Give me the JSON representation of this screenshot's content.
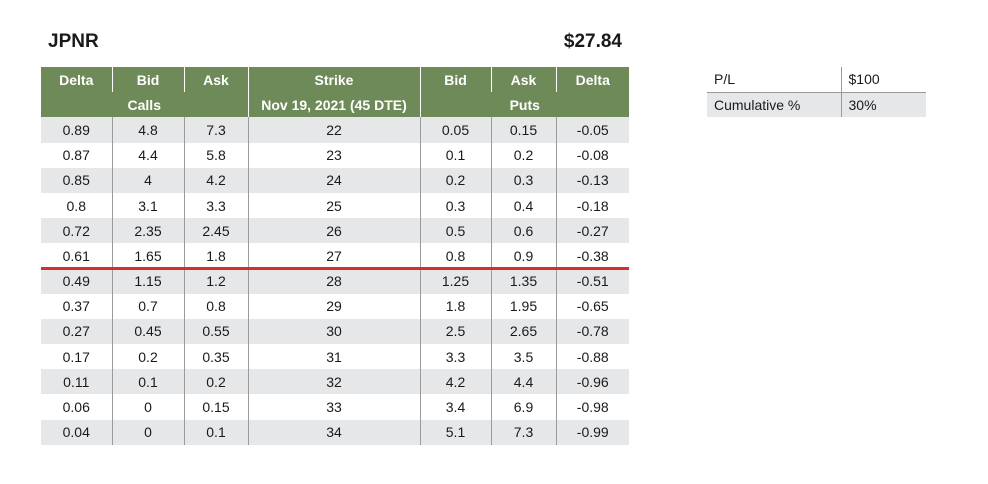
{
  "ticker": "JPNR",
  "price": "$27.84",
  "chain": {
    "headers": [
      "Delta",
      "Bid",
      "Ask",
      "Strike",
      "Bid",
      "Ask",
      "Delta"
    ],
    "subheaders": {
      "calls": "Calls",
      "expiry": "Nov 19, 2021 (45 DTE)",
      "puts": "Puts"
    },
    "rows": [
      [
        "0.89",
        "4.8",
        "7.3",
        "22",
        "0.05",
        "0.15",
        "-0.05"
      ],
      [
        "0.87",
        "4.4",
        "5.8",
        "23",
        "0.1",
        "0.2",
        "-0.08"
      ],
      [
        "0.85",
        "4",
        "4.2",
        "24",
        "0.2",
        "0.3",
        "-0.13"
      ],
      [
        "0.8",
        "3.1",
        "3.3",
        "25",
        "0.3",
        "0.4",
        "-0.18"
      ],
      [
        "0.72",
        "2.35",
        "2.45",
        "26",
        "0.5",
        "0.6",
        "-0.27"
      ],
      [
        "0.61",
        "1.65",
        "1.8",
        "27",
        "0.8",
        "0.9",
        "-0.38"
      ],
      [
        "0.49",
        "1.15",
        "1.2",
        "28",
        "1.25",
        "1.35",
        "-0.51"
      ],
      [
        "0.37",
        "0.7",
        "0.8",
        "29",
        "1.8",
        "1.95",
        "-0.65"
      ],
      [
        "0.27",
        "0.45",
        "0.55",
        "30",
        "2.5",
        "2.65",
        "-0.78"
      ],
      [
        "0.17",
        "0.2",
        "0.35",
        "31",
        "3.3",
        "3.5",
        "-0.88"
      ],
      [
        "0.11",
        "0.1",
        "0.2",
        "32",
        "4.2",
        "4.4",
        "-0.96"
      ],
      [
        "0.06",
        "0",
        "0.15",
        "33",
        "3.4",
        "6.9",
        "-0.98"
      ],
      [
        "0.04",
        "0",
        "0.1",
        "34",
        "5.1",
        "7.3",
        "-0.99"
      ]
    ]
  },
  "summary": {
    "pl_label": "P/L",
    "pl_value": "$100",
    "cumulative_label": "Cumulative %",
    "cumulative_value": "30%"
  },
  "colors": {
    "header_green": "#6f8a59",
    "row_shade": "#e6e7e8",
    "atm_line": "#d32f2f"
  }
}
